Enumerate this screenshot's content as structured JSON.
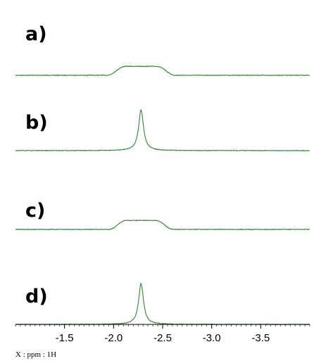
{
  "chart_data": {
    "type": "line",
    "title": "",
    "axis": {
      "caption": "X : ppm : 1H",
      "xlim": [
        -1.0,
        -4.0
      ],
      "reversed": true,
      "tick_values": [
        -1.5,
        -2.0,
        -2.5,
        -3.0,
        -3.5
      ],
      "tick_labels": [
        "-1.5",
        "-2.0",
        "-2.5",
        "-3.0",
        "-3.5"
      ]
    },
    "color": "#2e8b2e",
    "series": [
      {
        "label": "a)",
        "shape": "broad",
        "center_ppm": -2.28,
        "halfwidth_ppm": 0.35,
        "relative_height": 0.22
      },
      {
        "label": "b)",
        "shape": "sharp",
        "center_ppm": -2.28,
        "halfwidth_ppm": 0.03,
        "relative_height": 1.0
      },
      {
        "label": "c)",
        "shape": "broad",
        "center_ppm": -2.28,
        "halfwidth_ppm": 0.33,
        "relative_height": 0.22
      },
      {
        "label": "d)",
        "shape": "sharp",
        "center_ppm": -2.28,
        "halfwidth_ppm": 0.03,
        "relative_height": 1.0
      }
    ]
  }
}
